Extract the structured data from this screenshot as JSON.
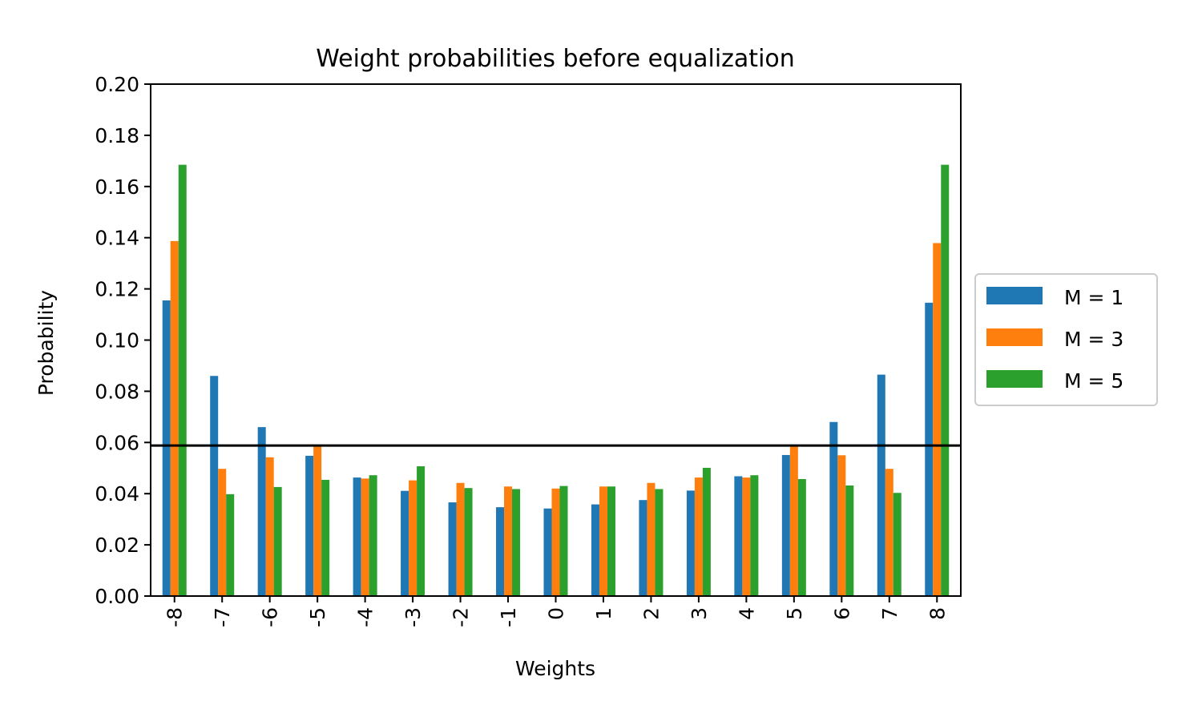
{
  "chart_data": {
    "type": "bar",
    "title": "Weight probabilities before equalization",
    "xlabel": "Weights",
    "ylabel": "Probability",
    "ylim": [
      0,
      0.2
    ],
    "yticks": [
      "0.00",
      "0.02",
      "0.04",
      "0.06",
      "0.08",
      "0.10",
      "0.12",
      "0.14",
      "0.16",
      "0.18",
      "0.20"
    ],
    "categories": [
      "-8",
      "-7",
      "-6",
      "-5",
      "-4",
      "-3",
      "-2",
      "-1",
      "0",
      "1",
      "2",
      "3",
      "4",
      "5",
      "6",
      "7",
      "8"
    ],
    "series": [
      {
        "name": "M = 1",
        "color": "#1f77b4",
        "values": [
          0.1155,
          0.086,
          0.066,
          0.0548,
          0.0463,
          0.0411,
          0.0366,
          0.0347,
          0.0342,
          0.0358,
          0.0375,
          0.0412,
          0.0468,
          0.0551,
          0.068,
          0.0865,
          0.1146
        ]
      },
      {
        "name": "M = 3",
        "color": "#ff7f0e",
        "values": [
          0.1387,
          0.0497,
          0.0542,
          0.0586,
          0.0459,
          0.0452,
          0.0442,
          0.0428,
          0.042,
          0.0428,
          0.0442,
          0.0463,
          0.0463,
          0.0586,
          0.055,
          0.0497,
          0.1379
        ]
      },
      {
        "name": "M = 5",
        "color": "#2ca02c",
        "values": [
          0.1685,
          0.0398,
          0.0426,
          0.0454,
          0.0472,
          0.0507,
          0.0422,
          0.0418,
          0.043,
          0.0428,
          0.0418,
          0.0501,
          0.0472,
          0.0457,
          0.0432,
          0.0403,
          0.1685
        ]
      }
    ],
    "reference_line": {
      "y": 0.0588,
      "color": "#000000"
    },
    "legend": {
      "position": "right",
      "entries": [
        "M = 1",
        "M = 3",
        "M = 5"
      ]
    }
  }
}
